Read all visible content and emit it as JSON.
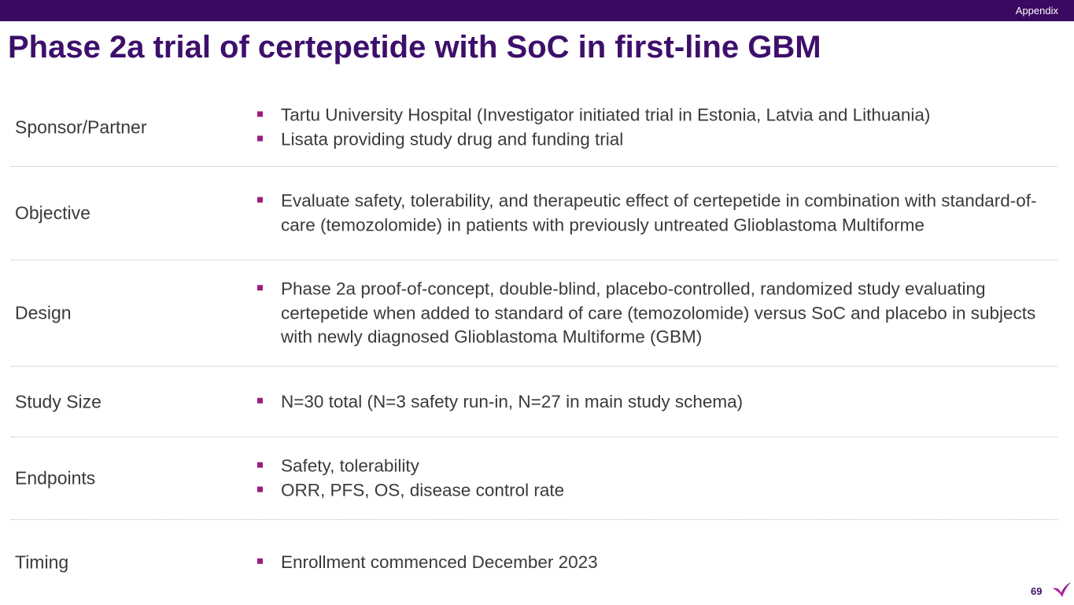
{
  "header": {
    "section_tag": "Appendix",
    "title": "Phase 2a trial of certepetide with SoC in first-line GBM"
  },
  "rows": [
    {
      "label": "Sponsor/Partner",
      "bullets": [
        "Tartu University Hospital (Investigator initiated trial in Estonia, Latvia and Lithuania)",
        "Lisata providing study drug and funding trial"
      ]
    },
    {
      "label": "Objective",
      "bullets": [
        "Evaluate safety, tolerability, and therapeutic effect of certepetide in combination with standard-of-care (temozolomide) in patients with previously untreated Glioblastoma Multiforme"
      ]
    },
    {
      "label": "Design",
      "bullets": [
        "Phase 2a proof-of-concept, double-blind, placebo-controlled, randomized study evaluating certepetide when added to standard of care (temozolomide) versus SoC and placebo in subjects with newly diagnosed Glioblastoma Multiforme (GBM)"
      ]
    },
    {
      "label": "Study Size",
      "bullets": [
        "N=30 total (N=3 safety run-in, N=27 in main study schema)"
      ]
    },
    {
      "label": "Endpoints",
      "bullets": [
        "Safety, tolerability",
        "ORR, PFS, OS, disease control rate"
      ]
    },
    {
      "label": "Timing",
      "bullets": [
        "Enrollment commenced December 2023"
      ]
    }
  ],
  "footer": {
    "page_number": "69",
    "logo_icon": "lisata-bird-logo-icon"
  },
  "colors": {
    "header_bar": "#3a0a63",
    "title": "#3d0f6b",
    "bullet_marker": "#9b1d7f",
    "text": "#3a3a3a"
  }
}
